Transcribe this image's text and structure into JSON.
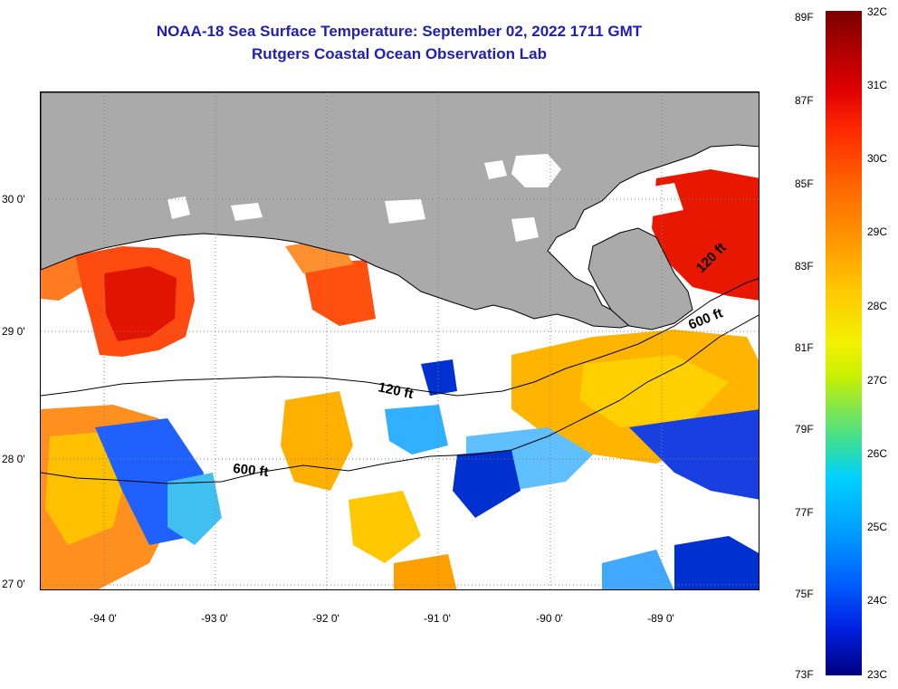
{
  "header": {
    "title": "NOAA-18 Sea Surface Temperature:  September 02, 2022 1711 GMT",
    "subtitle": "Rutgers Coastal Ocean Observation Lab"
  },
  "axes": {
    "lat_labels": [
      "30 0'",
      "29 0'",
      "28 0'",
      "27 0'"
    ],
    "lon_labels": [
      "-94 0'",
      "-93 0'",
      "-92 0'",
      "-91 0'",
      "-90 0'",
      "-89 0'"
    ]
  },
  "contours": {
    "label_120_west": "120 ft",
    "label_600_west": "600 ft",
    "label_120_east": "120 ft",
    "label_600_east": "600 ft"
  },
  "colorbar": {
    "fahrenheit_labels": [
      "89F",
      "87F",
      "85F",
      "83F",
      "81F",
      "79F",
      "77F",
      "75F",
      "73F"
    ],
    "celsius_labels": [
      "32C",
      "31C",
      "30C",
      "29C",
      "28C",
      "27C",
      "26C",
      "25C",
      "24C",
      "23C"
    ],
    "range_c": [
      23,
      32
    ]
  },
  "colors": {
    "title": "#1f1fb5",
    "land": "#aaaaaa",
    "warm": "#ff4000",
    "hot": "#e00000",
    "mid": "#ffb000",
    "cool": "#40a0ff",
    "cold": "#0030d0"
  }
}
